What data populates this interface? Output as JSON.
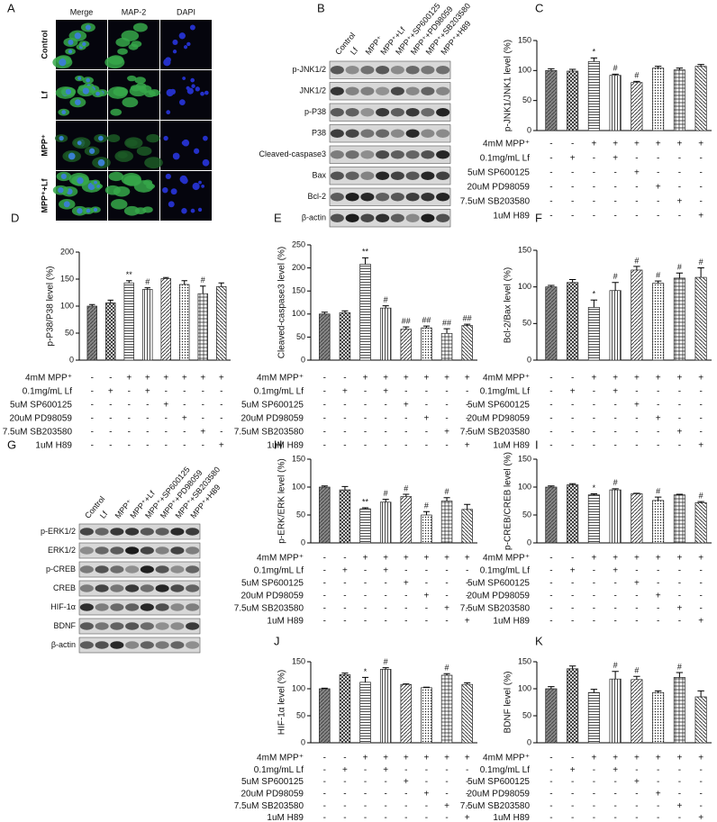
{
  "panel_a": {
    "letter": "A",
    "columns": [
      "Merge",
      "MAP-2",
      "DAPI"
    ],
    "rows": [
      "Control",
      "Lf",
      "MPP⁺",
      "MPP⁺+Lf"
    ]
  },
  "panel_b": {
    "letter": "B",
    "lanes": [
      "Control",
      "Lf",
      "MPP⁺",
      "MPP⁺+Lf",
      "MPP⁺+SP600125",
      "MPP⁺+PD98059",
      "MPP⁺+SB203580",
      "MPP⁺+H89"
    ],
    "bands": [
      "p-JNK1/2",
      "JNK1/2",
      "p-P38",
      "P38",
      "Cleaved-caspase3",
      "Bax",
      "Bcl-2",
      "β-actin"
    ]
  },
  "panel_g": {
    "letter": "G",
    "lanes": [
      "Control",
      "Lf",
      "MPP⁺",
      "MPP⁺+Lf",
      "MPP⁺+SP600125",
      "MPP⁺+PD98059",
      "MPP⁺+SB203580",
      "MPP⁺+H89"
    ],
    "bands": [
      "p-ERK1/2",
      "ERK1/2",
      "p-CREB",
      "CREB",
      "HIF-1α",
      "BDNF",
      "β-actin"
    ]
  },
  "treatments": [
    {
      "label": "4mM MPP⁺",
      "signs": [
        "-",
        "-",
        "+",
        "+",
        "+",
        "+",
        "+",
        "+"
      ]
    },
    {
      "label": "0.1mg/mL Lf",
      "signs": [
        "-",
        "+",
        "-",
        "+",
        "-",
        "-",
        "-",
        "-"
      ]
    },
    {
      "label": "5uM SP600125",
      "signs": [
        "-",
        "-",
        "-",
        "-",
        "+",
        "-",
        "-",
        "-"
      ]
    },
    {
      "label": "20uM PD98059",
      "signs": [
        "-",
        "-",
        "-",
        "-",
        "-",
        "+",
        "-",
        "-"
      ]
    },
    {
      "label": "7.5uM SB203580",
      "signs": [
        "-",
        "-",
        "-",
        "-",
        "-",
        "-",
        "+",
        "-"
      ]
    },
    {
      "label": "1uM H89",
      "signs": [
        "-",
        "-",
        "-",
        "-",
        "-",
        "-",
        "-",
        "+"
      ]
    }
  ],
  "chart_data": [
    {
      "type": "bar",
      "letter": "C",
      "ylabel": "p-JNK1/JNK1 level (%)",
      "values": [
        100,
        99,
        115,
        92,
        80,
        104,
        101,
        107
      ],
      "errors": [
        3,
        3,
        6,
        2,
        2,
        3,
        3,
        3
      ],
      "annotations": [
        null,
        null,
        "*",
        "#",
        "#",
        null,
        null,
        null
      ],
      "ylim": [
        0,
        150
      ],
      "yticks": [
        0,
        50,
        100,
        150
      ]
    },
    {
      "type": "bar",
      "letter": "D",
      "ylabel": "p-P38/P38 level (%)",
      "values": [
        100,
        106,
        143,
        131,
        151,
        140,
        123,
        136
      ],
      "errors": [
        3,
        5,
        4,
        3,
        2,
        7,
        14,
        7
      ],
      "annotations": [
        null,
        null,
        "**",
        "#",
        null,
        null,
        "#",
        null
      ],
      "ylim": [
        0,
        200
      ],
      "yticks": [
        0,
        50,
        100,
        150,
        200
      ]
    },
    {
      "type": "bar",
      "letter": "E",
      "ylabel": "Cleaved-caspase3 level (%)",
      "values": [
        100,
        103,
        208,
        113,
        67,
        70,
        58,
        75
      ],
      "errors": [
        4,
        4,
        14,
        5,
        5,
        4,
        10,
        3
      ],
      "annotations": [
        null,
        null,
        "**",
        "#",
        "##",
        "##",
        "##",
        "##"
      ],
      "ylim": [
        0,
        250
      ],
      "yticks": [
        0,
        50,
        100,
        150,
        200,
        250
      ]
    },
    {
      "type": "bar",
      "letter": "F",
      "ylabel": "Bcl-2/Bax level (%)",
      "values": [
        100,
        106,
        72,
        95,
        123,
        105,
        112,
        113
      ],
      "errors": [
        2,
        4,
        10,
        11,
        5,
        3,
        7,
        13
      ],
      "annotations": [
        null,
        null,
        "*",
        "#",
        "#",
        "#",
        "#",
        "#"
      ],
      "ylim": [
        0,
        150
      ],
      "yticks": [
        0,
        50,
        100,
        150
      ]
    },
    {
      "type": "bar",
      "letter": "H",
      "ylabel": "p-ERK/ERK level (%)",
      "values": [
        100,
        95,
        61,
        73,
        83,
        50,
        75,
        60
      ],
      "errors": [
        2,
        6,
        2,
        5,
        4,
        6,
        6,
        9
      ],
      "annotations": [
        null,
        null,
        "**",
        "#",
        "#",
        "#",
        "#",
        null
      ],
      "ylim": [
        0,
        150
      ],
      "yticks": [
        0,
        50,
        100,
        150
      ]
    },
    {
      "type": "bar",
      "letter": "I",
      "ylabel": "p-CREB/CREB level (%)",
      "values": [
        100,
        104,
        86,
        95,
        88,
        76,
        86,
        72
      ],
      "errors": [
        2,
        2,
        2,
        2,
        1,
        6,
        1,
        2
      ],
      "annotations": [
        null,
        null,
        "*",
        "#",
        null,
        "#",
        null,
        "#"
      ],
      "ylim": [
        0,
        150
      ],
      "yticks": [
        0,
        50,
        100,
        150
      ]
    },
    {
      "type": "bar",
      "letter": "J",
      "ylabel": "HIF-1α level (%)",
      "values": [
        100,
        126,
        112,
        136,
        108,
        102,
        125,
        108
      ],
      "errors": [
        1,
        3,
        9,
        3,
        1,
        1,
        3,
        3
      ],
      "annotations": [
        null,
        null,
        "*",
        "#",
        null,
        null,
        "#",
        null
      ],
      "ylim": [
        0,
        150
      ],
      "yticks": [
        0,
        50,
        100,
        150
      ]
    },
    {
      "type": "bar",
      "letter": "K",
      "ylabel": "BDNF level (%)",
      "values": [
        100,
        137,
        93,
        118,
        117,
        93,
        121,
        85
      ],
      "errors": [
        4,
        5,
        6,
        14,
        6,
        3,
        9,
        11
      ],
      "annotations": [
        null,
        null,
        null,
        "#",
        "#",
        null,
        "#",
        null
      ],
      "ylim": [
        0,
        150
      ],
      "yticks": [
        0,
        50,
        100,
        150
      ]
    }
  ]
}
